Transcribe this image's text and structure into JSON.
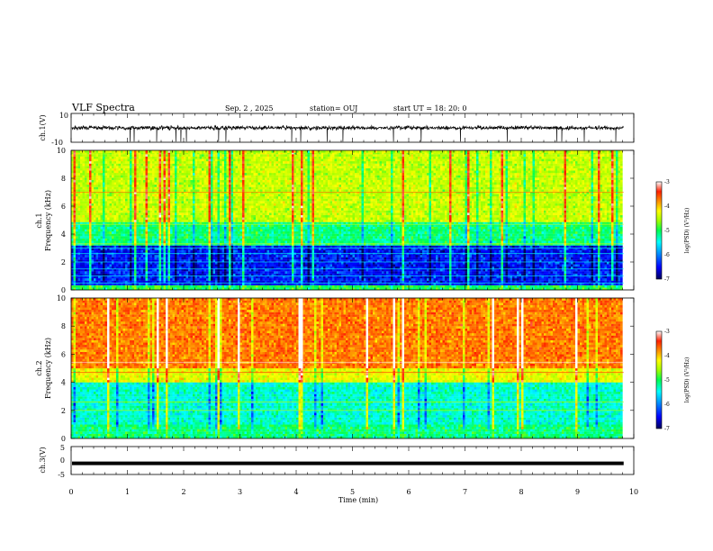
{
  "header": {
    "title": "VLF Spectra",
    "date": "Sep. 2 , 2025",
    "station": "station= OUJ",
    "start": "start UT = 18: 20: 0"
  },
  "chart_data": [
    {
      "type": "line",
      "name": "ch1-waveform",
      "ylabel": "ch.1(V)",
      "ylim": [
        -10,
        10
      ],
      "yticks": [
        "10",
        "-10"
      ],
      "baseline": 0,
      "noise_amplitude": 2,
      "spikes": [
        1.05,
        1.12,
        1.52,
        1.86,
        1.95,
        2.05,
        2.62,
        2.75,
        3.92,
        4.08,
        4.55,
        4.83,
        5.73,
        6.22,
        6.92,
        7.75,
        8.63,
        8.72,
        9.12,
        9.68
      ]
    },
    {
      "type": "heatmap",
      "name": "ch1-spectrogram",
      "ylabel_top": "ch.1",
      "ylabel": "Frequency (kHz)",
      "ylim": [
        0,
        10
      ],
      "yticks": [
        "0",
        "2",
        "4",
        "6",
        "8",
        "10"
      ],
      "colorbar": {
        "label": "log(PSD) (V²/Hz)",
        "ticks": [
          "-3",
          "-4",
          "-5",
          "-6",
          "-7"
        ]
      },
      "band_levels": [
        {
          "fmax": 0.3,
          "level": 0.45
        },
        {
          "fmax": 3.2,
          "level": 0.12
        },
        {
          "fmax": 4.8,
          "level": 0.42
        },
        {
          "fmax": 10,
          "level": 0.6
        }
      ],
      "spectral_lines_khz": [
        0.5,
        1.0,
        1.5,
        2.0,
        2.6,
        3.0,
        3.3,
        4.7,
        7.0
      ]
    },
    {
      "type": "heatmap",
      "name": "ch2-spectrogram",
      "ylabel_top": "ch.2",
      "ylabel": "Frequency (kHz)",
      "ylim": [
        0,
        10
      ],
      "yticks": [
        "0",
        "2",
        "4",
        "6",
        "8",
        "10"
      ],
      "colorbar": {
        "label": "log(PSD) (V²/Hz)",
        "ticks": [
          "-3",
          "-4",
          "-5",
          "-6",
          "-7"
        ]
      },
      "band_levels": [
        {
          "fmax": 1.0,
          "level": 0.42
        },
        {
          "fmax": 4.0,
          "level": 0.36
        },
        {
          "fmax": 5.0,
          "level": 0.64
        },
        {
          "fmax": 10,
          "level": 0.8
        }
      ],
      "spectral_lines_khz": [
        2.0,
        2.6,
        4.7,
        5.4
      ]
    },
    {
      "type": "line",
      "name": "ch3-waveform",
      "ylabel": "ch.3(V)",
      "ylim": [
        -5,
        5
      ],
      "yticks": [
        "5",
        "0",
        "-5"
      ],
      "value": -1
    }
  ],
  "x_axis": {
    "label": "Time (min)",
    "range": [
      0,
      10
    ],
    "ticks": [
      "0",
      "1",
      "2",
      "3",
      "4",
      "5",
      "6",
      "7",
      "8",
      "9",
      "10"
    ],
    "data_end": 9.82
  },
  "colors": {
    "colormap": [
      "#00005a",
      "#0000ff",
      "#00a0ff",
      "#00ffff",
      "#00ff50",
      "#a0ff00",
      "#ffff00",
      "#ff9000",
      "#ff2000",
      "#ffffff"
    ]
  }
}
